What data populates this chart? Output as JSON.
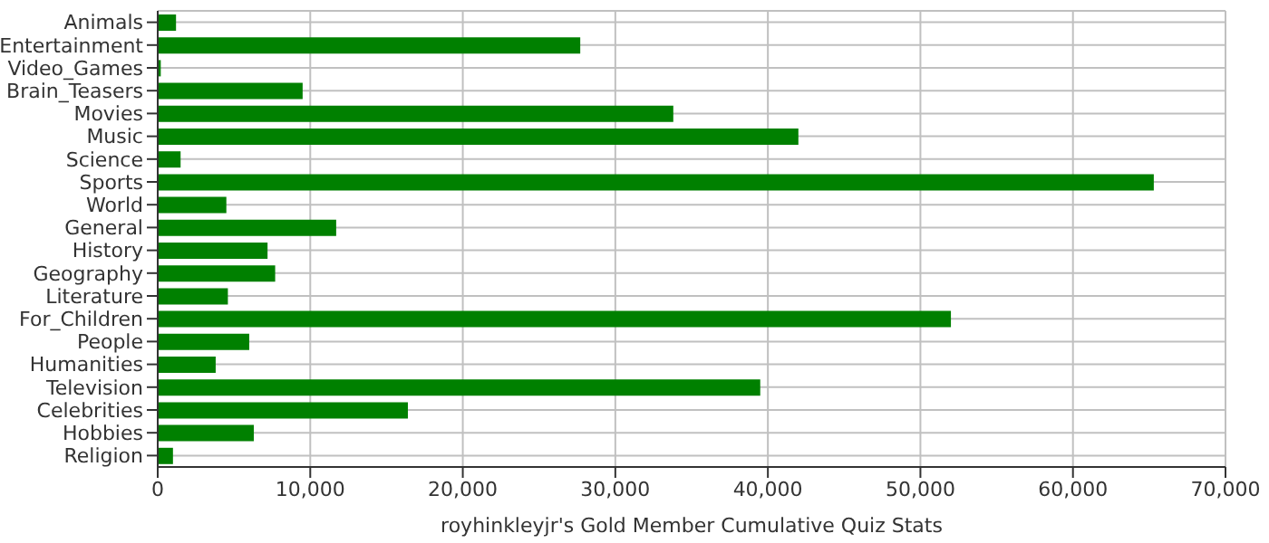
{
  "chart_data": {
    "type": "bar",
    "orientation": "horizontal",
    "xlabel": "royhinkleyjr's Gold Member Cumulative Quiz Stats",
    "categories": [
      "Animals",
      "Entertainment",
      "Video_Games",
      "Brain_Teasers",
      "Movies",
      "Music",
      "Science",
      "Sports",
      "World",
      "General",
      "History",
      "Geography",
      "Literature",
      "For_Children",
      "People",
      "Humanities",
      "Television",
      "Celebrities",
      "Hobbies",
      "Religion"
    ],
    "values": [
      1200,
      27700,
      200,
      9500,
      33800,
      42000,
      1500,
      65300,
      4500,
      11700,
      7200,
      7700,
      4600,
      52000,
      6000,
      3800,
      39500,
      16400,
      6300,
      1000
    ],
    "color": "#008000",
    "xlim": [
      0,
      70000
    ],
    "xticks": [
      {
        "value": 0,
        "label": "0"
      },
      {
        "value": 10000,
        "label": "10,000"
      },
      {
        "value": 20000,
        "label": "20,000"
      },
      {
        "value": 30000,
        "label": "30,000"
      },
      {
        "value": 40000,
        "label": "40,000"
      },
      {
        "value": 50000,
        "label": "50,000"
      },
      {
        "value": 60000,
        "label": "60,000"
      },
      {
        "value": 70000,
        "label": "70,000"
      }
    ],
    "grid": true,
    "legend": false
  }
}
